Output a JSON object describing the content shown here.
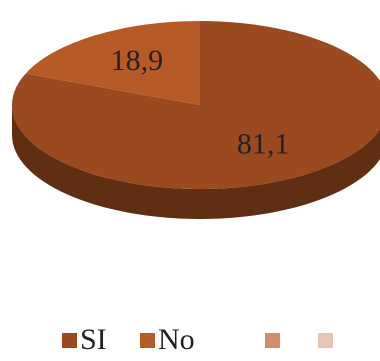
{
  "chart_data": {
    "type": "pie",
    "categories": [
      "SI",
      "No",
      null,
      null
    ],
    "values": [
      81.1,
      18.9,
      null,
      null
    ],
    "value_labels": [
      "81,1",
      "18,9",
      null,
      null
    ],
    "colors": [
      "#9a4a1e",
      "#b65a26",
      "#d48c6c",
      "#e9c3b3"
    ]
  }
}
